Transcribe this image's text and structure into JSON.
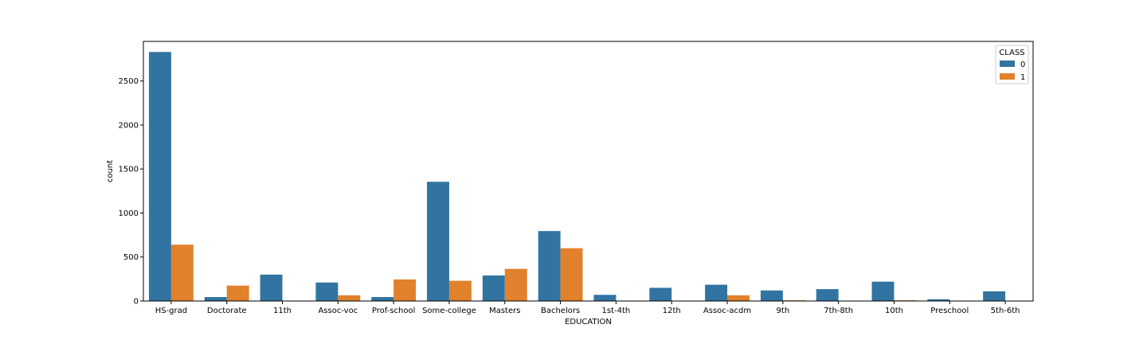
{
  "chart_data": {
    "type": "bar",
    "xlabel": "EDUCATION",
    "ylabel": "count",
    "ylim": [
      0,
      2950
    ],
    "yticks": [
      0,
      500,
      1000,
      1500,
      2000,
      2500
    ],
    "categories": [
      "HS-grad",
      "Doctorate",
      "11th",
      "Assoc-voc",
      "Prof-school",
      "Some-college",
      "Masters",
      "Bachelors",
      "1st-4th",
      "12th",
      "Assoc-acdm",
      "9th",
      "7th-8th",
      "10th",
      "Preschool",
      "5th-6th"
    ],
    "series": [
      {
        "name": "0",
        "color": "#3274a1",
        "values": [
          2830,
          45,
          300,
          210,
          45,
          1355,
          290,
          795,
          70,
          150,
          185,
          120,
          135,
          220,
          20,
          110
        ]
      },
      {
        "name": "1",
        "color": "#e1812c",
        "values": [
          640,
          175,
          0,
          65,
          245,
          230,
          365,
          600,
          0,
          0,
          65,
          8,
          0,
          8,
          0,
          0
        ]
      }
    ],
    "legend": {
      "title": "CLASS",
      "position": "top-right"
    },
    "grid": false
  }
}
